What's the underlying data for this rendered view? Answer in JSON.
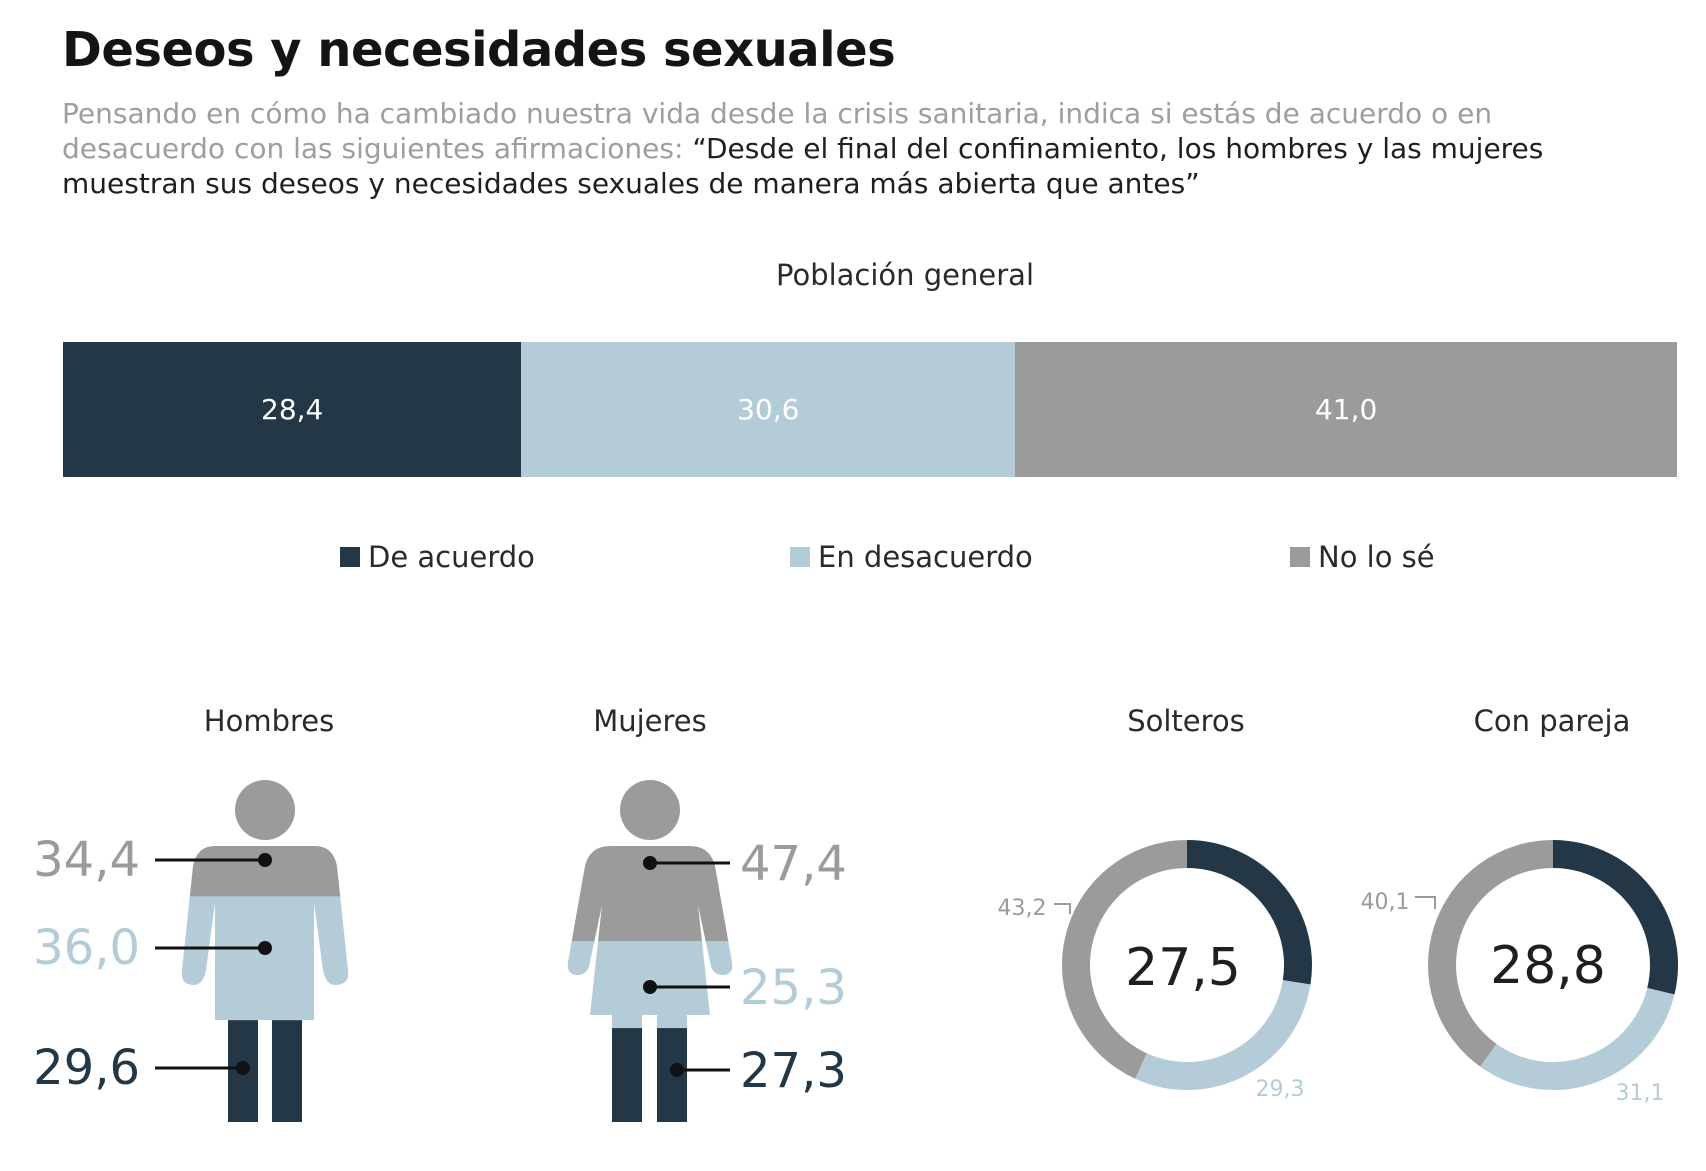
{
  "title": "Deseos y necesidades sexuales",
  "subtitle_intro": "Pensando en cómo ha cambiado nuestra vida desde la crisis sanitaria, indica si estás de acuerdo o en desacuerdo con las siguientes afirmaciones:",
  "subtitle_quote": "“Desde el final del confinamiento, los hombres y las mujeres muestran sus deseos y necesidades sexuales de manera más abierta que antes”",
  "colors": {
    "de_acuerdo": "#243746",
    "en_desacuerdo": "#b4cbd8",
    "no_lo_se": "#9b9b9b"
  },
  "chart_data": [
    {
      "type": "bar",
      "title": "Población general",
      "stacked": true,
      "orientation": "horizontal",
      "categories": [
        "Población general"
      ],
      "series": [
        {
          "name": "De acuerdo",
          "values": [
            28.4
          ],
          "label": "28,4"
        },
        {
          "name": "En desacuerdo",
          "values": [
            30.6
          ],
          "label": "30,6"
        },
        {
          "name": "No lo sé",
          "values": [
            41.0
          ],
          "label": "41,0"
        }
      ],
      "legend": [
        "De acuerdo",
        "En desacuerdo",
        "No lo sé"
      ],
      "legend_position": "bottom"
    },
    {
      "type": "bar",
      "title": "Hombres",
      "series": [
        {
          "name": "No lo sé",
          "values": [
            34.4
          ],
          "label": "34,4"
        },
        {
          "name": "En desacuerdo",
          "values": [
            36.0
          ],
          "label": "36,0"
        },
        {
          "name": "De acuerdo",
          "values": [
            29.6
          ],
          "label": "29,6"
        }
      ]
    },
    {
      "type": "bar",
      "title": "Mujeres",
      "series": [
        {
          "name": "No lo sé",
          "values": [
            47.4
          ],
          "label": "47,4"
        },
        {
          "name": "En desacuerdo",
          "values": [
            25.3
          ],
          "label": "25,3"
        },
        {
          "name": "De acuerdo",
          "values": [
            27.3
          ],
          "label": "27,3"
        }
      ]
    },
    {
      "type": "pie",
      "title": "Solteros",
      "center_label": "27,5",
      "slices": [
        {
          "name": "De acuerdo",
          "value": 27.5,
          "label": "27,5"
        },
        {
          "name": "En desacuerdo",
          "value": 29.3,
          "label": "29,3"
        },
        {
          "name": "No lo sé",
          "value": 43.2,
          "label": "43,2"
        }
      ]
    },
    {
      "type": "pie",
      "title": "Con pareja",
      "center_label": "28,8",
      "slices": [
        {
          "name": "De acuerdo",
          "value": 28.8,
          "label": "28,8"
        },
        {
          "name": "En desacuerdo",
          "value": 31.1,
          "label": "31,1"
        },
        {
          "name": "No lo sé",
          "value": 40.1,
          "label": "40,1"
        }
      ]
    }
  ]
}
